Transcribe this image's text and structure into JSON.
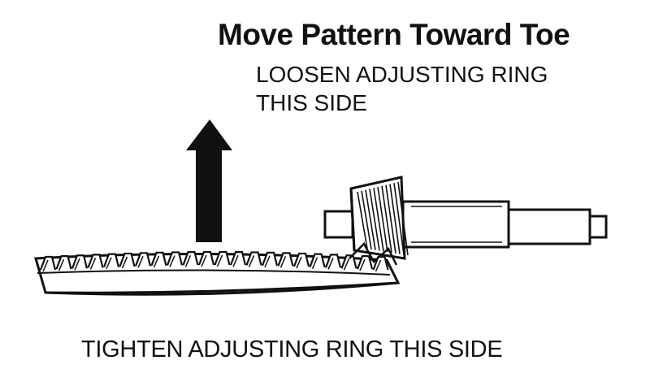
{
  "heading": "Move Pattern Toward Toe",
  "top_instruction": "LOOSEN ADJUSTING RING\nTHIS SIDE",
  "bottom_instruction": "TIGHTEN ADJUSTING RING THIS SIDE",
  "colors": {
    "ink": "#111111",
    "background": "#ffffff"
  }
}
